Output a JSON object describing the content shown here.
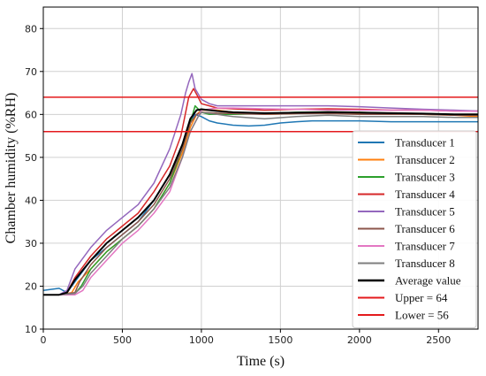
{
  "chart_data": {
    "type": "line",
    "xlabel": "Time (s)",
    "ylabel": "Chamber humidity (%RH)",
    "xlim": [
      0,
      2750
    ],
    "ylim": [
      10,
      85
    ],
    "xticks": [
      0,
      500,
      1000,
      1500,
      2000,
      2500
    ],
    "yticks": [
      10,
      20,
      30,
      40,
      50,
      60,
      70,
      80
    ],
    "grid": true,
    "legend_position": "lower-right",
    "series": [
      {
        "name": "Transducer 1",
        "color": "#1f77b4",
        "width": 1.5,
        "x": [
          0,
          100,
          150,
          200,
          300,
          400,
          500,
          600,
          700,
          800,
          850,
          900,
          930,
          960,
          1000,
          1050,
          1100,
          1200,
          1300,
          1400,
          1500,
          1600,
          1700,
          1800,
          2000,
          2200,
          2400,
          2600,
          2750
        ],
        "y": [
          19,
          19.5,
          18.5,
          21,
          26,
          29,
          32,
          35,
          40,
          46,
          50,
          55,
          58.5,
          60,
          59.5,
          58.5,
          58,
          57.5,
          57.3,
          57.5,
          58,
          58.3,
          58.5,
          58.5,
          58.5,
          58.3,
          58.3,
          58.3,
          58.3
        ]
      },
      {
        "name": "Transducer 2",
        "color": "#ff7f0e",
        "width": 1.5,
        "x": [
          0,
          100,
          180,
          220,
          300,
          400,
          500,
          600,
          700,
          800,
          880,
          930,
          970,
          1000,
          1100,
          1200,
          1400,
          1600,
          1800,
          2000,
          2200,
          2400,
          2600,
          2750
        ],
        "y": [
          18,
          18,
          18.5,
          21,
          24,
          28,
          31,
          34,
          38,
          44,
          51,
          57,
          60,
          61,
          61,
          60.5,
          60,
          60.2,
          60.5,
          60.3,
          60.2,
          60,
          59.8,
          59.5
        ]
      },
      {
        "name": "Transducer 3",
        "color": "#2ca02c",
        "width": 1.5,
        "x": [
          0,
          100,
          200,
          240,
          300,
          400,
          500,
          600,
          700,
          800,
          880,
          930,
          960,
          1000,
          1050,
          1100,
          1200,
          1400,
          1600,
          1800,
          2000,
          2200,
          2400,
          2600,
          2750
        ],
        "y": [
          18,
          18,
          18.3,
          20,
          24,
          28,
          31,
          34,
          38,
          44,
          52,
          58,
          62,
          60.5,
          60,
          60,
          60,
          60.2,
          60.5,
          60.6,
          60.5,
          60.3,
          60.2,
          60,
          60
        ]
      },
      {
        "name": "Transducer 4",
        "color": "#d62728",
        "width": 1.5,
        "x": [
          0,
          100,
          150,
          200,
          300,
          400,
          500,
          600,
          700,
          800,
          870,
          920,
          950,
          980,
          1000,
          1050,
          1100,
          1200,
          1400,
          1600,
          1800,
          2000,
          2200,
          2400,
          2600,
          2750
        ],
        "y": [
          18,
          18,
          18.5,
          22,
          27,
          31,
          34,
          37,
          42,
          48,
          55,
          64,
          66,
          64,
          62.5,
          62,
          61.5,
          61.3,
          61,
          61.2,
          61.3,
          61.2,
          61,
          61,
          60.8,
          60.8
        ]
      },
      {
        "name": "Transducer 5",
        "color": "#9467bd",
        "width": 1.5,
        "x": [
          0,
          100,
          150,
          200,
          300,
          400,
          500,
          600,
          700,
          800,
          870,
          900,
          920,
          940,
          960,
          1000,
          1050,
          1100,
          1200,
          1400,
          1600,
          1800,
          2000,
          2200,
          2400,
          2600,
          2750
        ],
        "y": [
          18,
          18,
          19,
          24,
          29,
          33,
          36,
          39,
          44,
          52,
          60,
          65,
          67.5,
          69.5,
          66,
          63.5,
          62.5,
          62,
          62,
          62,
          62,
          62,
          61.8,
          61.5,
          61.2,
          61,
          60.8
        ]
      },
      {
        "name": "Transducer 6",
        "color": "#8c564b",
        "width": 1.5,
        "x": [
          0,
          100,
          200,
          230,
          300,
          400,
          500,
          600,
          700,
          800,
          880,
          930,
          970,
          1000,
          1100,
          1200,
          1400,
          1600,
          1800,
          2000,
          2200,
          2400,
          2600,
          2750
        ],
        "y": [
          18,
          18,
          18.5,
          21,
          25,
          29,
          32,
          35,
          39,
          45,
          52,
          58,
          60,
          60.5,
          60.3,
          60.2,
          60,
          60.2,
          60.2,
          60,
          60,
          60,
          59.8,
          59.8
        ]
      },
      {
        "name": "Transducer 7",
        "color": "#e377c2",
        "width": 1.5,
        "x": [
          0,
          100,
          200,
          250,
          300,
          400,
          500,
          600,
          700,
          800,
          880,
          930,
          980,
          1000,
          1100,
          1200,
          1400,
          1600,
          1800,
          2000,
          2200,
          2400,
          2600,
          2750
        ],
        "y": [
          18,
          18,
          18,
          19,
          22,
          26,
          30,
          33,
          37,
          42,
          50,
          56,
          59.5,
          61,
          61.5,
          61.5,
          61.3,
          61.2,
          61,
          61,
          61,
          61,
          60.8,
          60.7
        ]
      },
      {
        "name": "Transducer 8",
        "color": "#7f7f7f",
        "width": 1.5,
        "x": [
          0,
          100,
          200,
          250,
          300,
          400,
          500,
          600,
          700,
          800,
          880,
          930,
          980,
          1000,
          1100,
          1200,
          1400,
          1600,
          1800,
          2000,
          2200,
          2400,
          2600,
          2750
        ],
        "y": [
          18,
          18,
          18.3,
          20,
          23,
          27,
          31,
          34,
          38,
          43,
          50,
          56,
          59.5,
          60.5,
          60,
          59.5,
          59,
          59.5,
          59.8,
          59.5,
          59.5,
          59.5,
          59.3,
          59.3
        ]
      },
      {
        "name": "Average value",
        "color": "#000000",
        "width": 2,
        "x": [
          0,
          100,
          150,
          200,
          300,
          400,
          500,
          600,
          700,
          800,
          880,
          930,
          970,
          1000,
          1100,
          1200,
          1400,
          1600,
          1800,
          2000,
          2200,
          2400,
          2600,
          2750
        ],
        "y": [
          18,
          18,
          18.5,
          21.5,
          26,
          30,
          33,
          36,
          40,
          46,
          53,
          59,
          61,
          61.2,
          60.8,
          60.5,
          60.3,
          60.4,
          60.5,
          60.4,
          60.3,
          60.2,
          60,
          60
        ]
      },
      {
        "name": "Upper =  64",
        "color": "#e41a1c",
        "width": 1.5,
        "x": [
          0,
          2750
        ],
        "y": [
          64,
          64
        ]
      },
      {
        "name": "Lower =  56",
        "color": "#e41a1c",
        "width": 1.5,
        "x": [
          0,
          2750
        ],
        "y": [
          56,
          56
        ]
      }
    ]
  }
}
